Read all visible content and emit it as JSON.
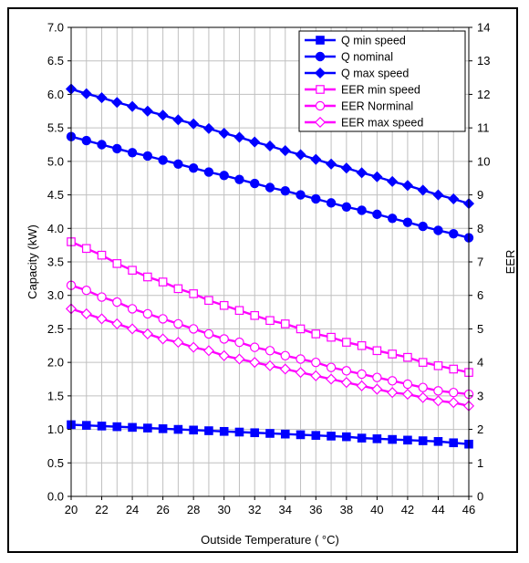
{
  "chart_data": {
    "type": "line",
    "title": "",
    "xlabel": "Outside Temperature ( °C)",
    "ylabel_left": "Capacity (kW)",
    "ylabel_right": "EER",
    "xlim": [
      20,
      46
    ],
    "ylim_left": [
      0,
      7
    ],
    "ylim_right": [
      0,
      14
    ],
    "x_ticks": [
      "20",
      "22",
      "24",
      "26",
      "28",
      "30",
      "32",
      "34",
      "36",
      "38",
      "40",
      "42",
      "44",
      "46"
    ],
    "y_left_ticks": [
      "0.0",
      "0.5",
      "1.0",
      "1.5",
      "2.0",
      "2.5",
      "3.0",
      "3.5",
      "4.0",
      "4.5",
      "5.0",
      "5.5",
      "6.0",
      "6.5",
      "7.0"
    ],
    "y_right_ticks": [
      "0",
      "1",
      "2",
      "3",
      "4",
      "5",
      "6",
      "7",
      "8",
      "9",
      "10",
      "11",
      "12",
      "13",
      "14"
    ],
    "grid": true,
    "legend_position": "top-right",
    "x": [
      20,
      21,
      22,
      23,
      24,
      25,
      26,
      27,
      28,
      29,
      30,
      31,
      32,
      33,
      34,
      35,
      36,
      37,
      38,
      39,
      40,
      41,
      42,
      43,
      44,
      45,
      46
    ],
    "series": [
      {
        "name": "Q min speed",
        "axis": "left",
        "color": "#0000FF",
        "marker": "square-filled",
        "values": [
          1.07,
          1.06,
          1.05,
          1.04,
          1.03,
          1.02,
          1.01,
          1.0,
          0.99,
          0.98,
          0.97,
          0.96,
          0.95,
          0.94,
          0.93,
          0.92,
          0.91,
          0.9,
          0.89,
          0.87,
          0.86,
          0.85,
          0.84,
          0.83,
          0.82,
          0.8,
          0.78
        ]
      },
      {
        "name": "Q nominal",
        "axis": "left",
        "color": "#0000FF",
        "marker": "circle-filled",
        "values": [
          5.37,
          5.31,
          5.25,
          5.19,
          5.13,
          5.08,
          5.02,
          4.96,
          4.9,
          4.84,
          4.79,
          4.73,
          4.67,
          4.61,
          4.56,
          4.5,
          4.44,
          4.38,
          4.32,
          4.27,
          4.21,
          4.15,
          4.09,
          4.03,
          3.97,
          3.92,
          3.86
        ]
      },
      {
        "name": "Q max speed",
        "axis": "left",
        "color": "#0000FF",
        "marker": "diamond-filled",
        "values": [
          6.08,
          6.01,
          5.95,
          5.88,
          5.82,
          5.75,
          5.69,
          5.62,
          5.56,
          5.49,
          5.42,
          5.36,
          5.29,
          5.23,
          5.16,
          5.1,
          5.03,
          4.96,
          4.9,
          4.83,
          4.77,
          4.7,
          4.64,
          4.57,
          4.5,
          4.44,
          4.37
        ]
      },
      {
        "name": "EER min speed",
        "axis": "right",
        "color": "#FF00FF",
        "marker": "square-open",
        "values": [
          7.6,
          7.4,
          7.2,
          6.95,
          6.75,
          6.55,
          6.4,
          6.2,
          6.05,
          5.85,
          5.7,
          5.55,
          5.4,
          5.25,
          5.15,
          5.0,
          4.85,
          4.75,
          4.6,
          4.5,
          4.35,
          4.25,
          4.15,
          4.0,
          3.9,
          3.8,
          3.7
        ]
      },
      {
        "name": "EER Norminal",
        "axis": "right",
        "color": "#FF00FF",
        "marker": "circle-open",
        "values": [
          6.3,
          6.15,
          5.95,
          5.8,
          5.6,
          5.45,
          5.3,
          5.15,
          5.0,
          4.85,
          4.7,
          4.6,
          4.45,
          4.35,
          4.2,
          4.1,
          4.0,
          3.85,
          3.75,
          3.65,
          3.55,
          3.45,
          3.35,
          3.25,
          3.15,
          3.1,
          3.05
        ]
      },
      {
        "name": "EER max speed",
        "axis": "right",
        "color": "#FF00FF",
        "marker": "diamond-open",
        "values": [
          5.6,
          5.45,
          5.3,
          5.15,
          5.0,
          4.85,
          4.7,
          4.6,
          4.45,
          4.35,
          4.2,
          4.1,
          4.0,
          3.9,
          3.8,
          3.7,
          3.6,
          3.5,
          3.4,
          3.3,
          3.2,
          3.1,
          3.05,
          2.95,
          2.85,
          2.8,
          2.7
        ]
      }
    ]
  }
}
